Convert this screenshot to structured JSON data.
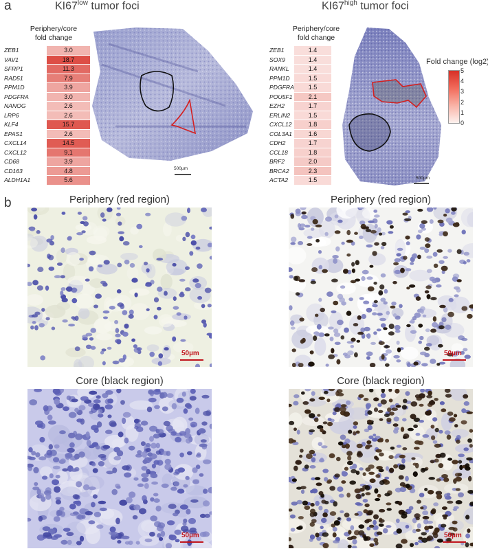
{
  "panel_a": {
    "letter": "a",
    "low": {
      "title_prefix": "KI67",
      "title_sup": "low",
      "title_suffix": " tumor foci",
      "table_header_line1": "Periphery/core",
      "table_header_line2": "fold change",
      "genes": [
        "ZEB1",
        "VAV1",
        "SFRP1",
        "RAD51",
        "PPM1D",
        "PDGFRA",
        "NANOG",
        "LRP6",
        "KLF4",
        "EPAS1",
        "CXCL14",
        "CXCL12",
        "CD68",
        "CD163",
        "ALDH1A1"
      ],
      "fold_changes": [
        "3.0",
        "18.7",
        "11.3",
        "7.9",
        "3.9",
        "3.0",
        "2.6",
        "2.6",
        "15.7",
        "2.6",
        "14.5",
        "9.1",
        "3.9",
        "4.8",
        "5.6"
      ],
      "scale_label": "500µm"
    },
    "high": {
      "title_prefix": "KI67",
      "title_sup": "high",
      "title_suffix": " tumor foci",
      "table_header_line1": "Periphery/core",
      "table_header_line2": "fold change",
      "genes": [
        "ZEB1",
        "SOX9",
        "RANKL",
        "PPM1D",
        "PDGFRA",
        "POU5F1",
        "EZH2",
        "ERLIN2",
        "CXCL12",
        "COL3A1",
        "CDH2",
        "CCL18",
        "BRF2",
        "BRCA2",
        "ACTA2"
      ],
      "fold_changes": [
        "1.4",
        "1.4",
        "1.4",
        "1.5",
        "1.5",
        "2.1",
        "1.7",
        "1.5",
        "1.8",
        "1.6",
        "1.7",
        "1.8",
        "2.0",
        "2.3",
        "1.5"
      ],
      "scale_label": "500µm"
    },
    "legend": {
      "title": "Fold change (log2)",
      "ticks": [
        "5",
        "4",
        "3",
        "2",
        "1",
        "0"
      ],
      "color_high": "#d73027",
      "color_low": "#fdf1ee"
    }
  },
  "panel_b": {
    "letter": "b",
    "titles": {
      "top_left": "Periphery (red region)",
      "top_right": "Periphery (red region)",
      "bottom_left": "Core (black region)",
      "bottom_right": "Core (black region)"
    },
    "scale_label": "50µm"
  },
  "colors": {
    "outline_red": "#d42020",
    "outline_black": "#111111",
    "hematoxylin": "#5b5fb5",
    "dab_brown": "#2a1a10",
    "scalebar_red": "#c0141c"
  }
}
